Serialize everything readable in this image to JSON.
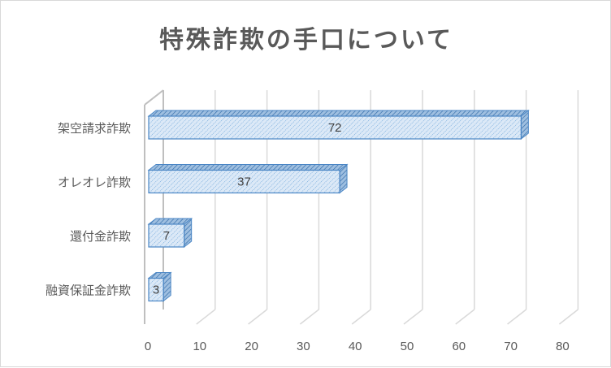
{
  "chart_data": {
    "type": "bar",
    "orientation": "horizontal",
    "style": "3d-clustered",
    "title": "特殊詐欺の手口について",
    "categories": [
      "架空請求詐欺",
      "オレオレ詐欺",
      "還付金詐欺",
      "融資保証金詐欺"
    ],
    "values": [
      72,
      37,
      7,
      3
    ],
    "xlim": [
      0,
      80
    ],
    "xticks": [
      0,
      10,
      20,
      30,
      40,
      50,
      60,
      70,
      80
    ],
    "grid": true,
    "legend": "none",
    "data_labels": true,
    "colors": {
      "bar_fill": "#dce9f7",
      "bar_hatch": "#5b9bd5",
      "bar_edge": "#4a86c5",
      "grid": "#d9d9d9",
      "text": "#595959"
    }
  }
}
